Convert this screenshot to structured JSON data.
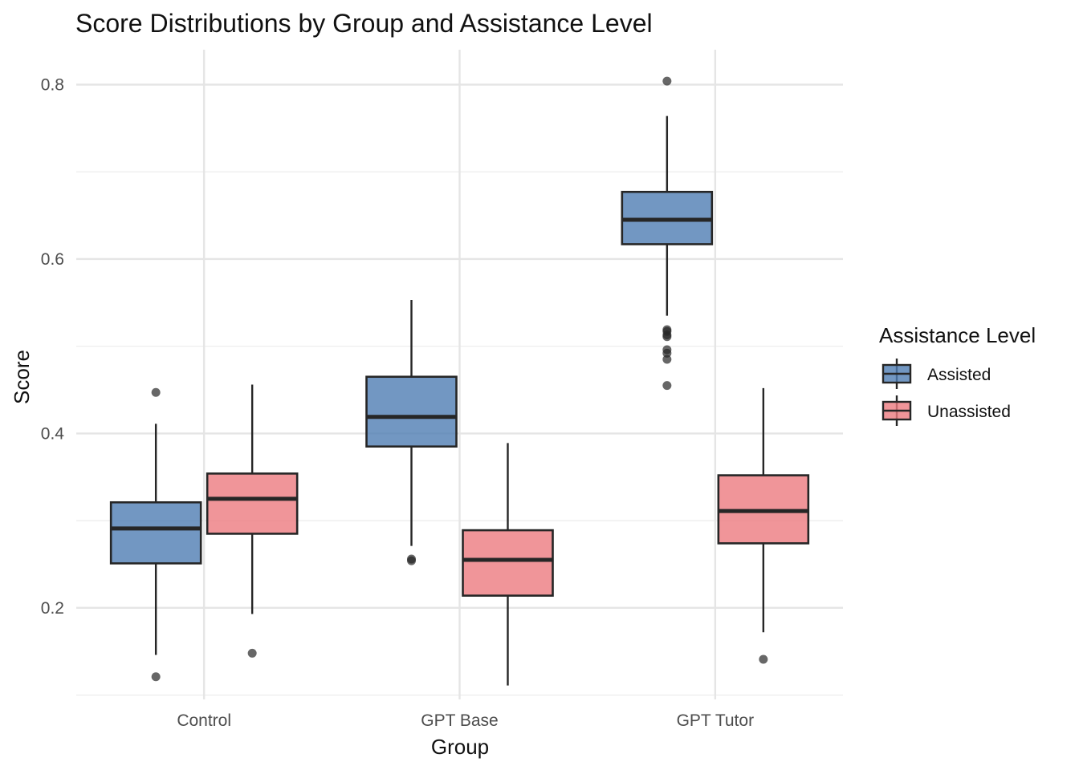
{
  "chart_data": {
    "type": "box",
    "title": "Score Distributions by Group and Assistance Level",
    "xlabel": "Group",
    "ylabel": "Score",
    "categories": [
      "Control",
      "GPT Base",
      "GPT Tutor"
    ],
    "ylim": [
      0.095,
      0.84
    ],
    "yticks": [
      0.2,
      0.4,
      0.6,
      0.8
    ],
    "ytick_labels": [
      "0.2",
      "0.4",
      "0.6",
      "0.8"
    ],
    "grid": true,
    "legend": {
      "title": "Assistance Level",
      "position": "right"
    },
    "series": [
      {
        "name": "Assisted",
        "color": "#4F7DB3",
        "boxes": [
          {
            "category": "Control",
            "q1": 0.251,
            "median": 0.291,
            "q3": 0.321,
            "whisker_low": 0.146,
            "whisker_high": 0.411,
            "outliers": [
              0.121,
              0.447
            ]
          },
          {
            "category": "GPT Base",
            "q1": 0.385,
            "median": 0.419,
            "q3": 0.465,
            "whisker_low": 0.271,
            "whisker_high": 0.553,
            "outliers": [
              0.254,
              0.256
            ]
          },
          {
            "category": "GPT Tutor",
            "q1": 0.617,
            "median": 0.645,
            "q3": 0.677,
            "whisker_low": 0.535,
            "whisker_high": 0.764,
            "outliers": [
              0.455,
              0.485,
              0.492,
              0.496,
              0.511,
              0.513,
              0.517,
              0.519,
              0.804
            ]
          }
        ]
      },
      {
        "name": "Unassisted",
        "color": "#EC7A80",
        "boxes": [
          {
            "category": "Control",
            "q1": 0.285,
            "median": 0.325,
            "q3": 0.354,
            "whisker_low": 0.193,
            "whisker_high": 0.456,
            "outliers": [
              0.148
            ]
          },
          {
            "category": "GPT Base",
            "q1": 0.214,
            "median": 0.255,
            "q3": 0.289,
            "whisker_low": 0.111,
            "whisker_high": 0.389,
            "outliers": []
          },
          {
            "category": "GPT Tutor",
            "q1": 0.274,
            "median": 0.311,
            "q3": 0.352,
            "whisker_low": 0.172,
            "whisker_high": 0.452,
            "outliers": [
              0.141
            ]
          }
        ]
      }
    ]
  }
}
